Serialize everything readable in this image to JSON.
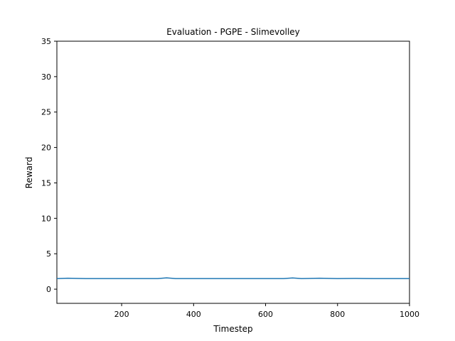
{
  "chart_data": {
    "type": "line",
    "title": "Evaluation - PGPE - Slimevolley",
    "xlabel": "Timestep",
    "ylabel": "Reward",
    "xlim": [
      20,
      1000
    ],
    "ylim": [
      -2,
      35
    ],
    "xticks": [
      200,
      400,
      600,
      800,
      1000
    ],
    "yticks": [
      0,
      5,
      10,
      15,
      20,
      25,
      30,
      35
    ],
    "grid": false,
    "series": [
      {
        "color": "#1f77b4",
        "x": [
          20,
          50,
          100,
          150,
          200,
          250,
          300,
          325,
          350,
          400,
          450,
          500,
          550,
          600,
          650,
          675,
          700,
          750,
          800,
          850,
          900,
          950,
          1000
        ],
        "y": [
          1.5,
          1.55,
          1.5,
          1.5,
          1.5,
          1.5,
          1.5,
          1.6,
          1.5,
          1.5,
          1.5,
          1.5,
          1.5,
          1.5,
          1.5,
          1.58,
          1.5,
          1.55,
          1.5,
          1.52,
          1.5,
          1.5,
          1.5
        ]
      }
    ]
  }
}
